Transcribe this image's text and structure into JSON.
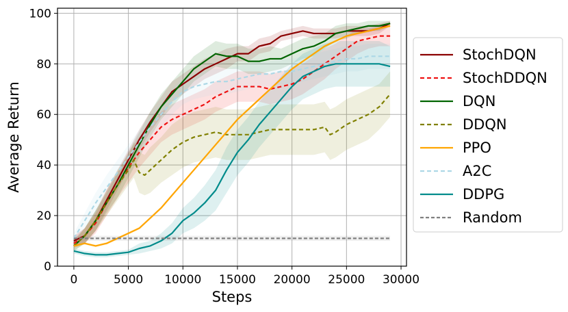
{
  "chart_data": {
    "type": "line",
    "xlabel": "Steps",
    "ylabel": "Average Return",
    "xlim": [
      -1500,
      30500
    ],
    "ylim": [
      0,
      102
    ],
    "xticks": [
      0,
      5000,
      10000,
      15000,
      20000,
      25000,
      30000
    ],
    "xtick_labels": [
      "0",
      "5000",
      "10000",
      "15000",
      "20000",
      "25000",
      "30000"
    ],
    "yticks": [
      0,
      20,
      40,
      60,
      80,
      100
    ],
    "ytick_labels": [
      "0",
      "20",
      "40",
      "60",
      "80",
      "100"
    ],
    "grid": true,
    "legend_position": "right outside",
    "series": [
      {
        "name": "StochDQN",
        "color": "#8b0000",
        "dash": "solid",
        "x": [
          0,
          1000,
          2000,
          3000,
          4000,
          5000,
          6000,
          7000,
          8000,
          9000,
          10000,
          11000,
          12000,
          13000,
          14000,
          15000,
          16000,
          17000,
          18000,
          19000,
          20000,
          21000,
          22000,
          23000,
          24000,
          25000,
          26000,
          27000,
          28000,
          29000
        ],
        "y": [
          10,
          12,
          18,
          26,
          34,
          42,
          50,
          57,
          63,
          69,
          72,
          75,
          78,
          80,
          82,
          84,
          84,
          87,
          88,
          91,
          92,
          93,
          92,
          92,
          92,
          93,
          93,
          93,
          94,
          96
        ],
        "band": [
          2,
          3,
          4,
          4,
          4,
          4,
          4,
          4,
          4,
          4,
          4,
          4,
          4,
          4,
          4,
          3,
          3,
          3,
          3,
          2,
          2,
          2,
          2,
          2,
          2,
          2,
          2,
          2,
          2,
          1
        ]
      },
      {
        "name": "StochDDQN",
        "color": "#ee1111",
        "dash": "6,4",
        "x": [
          0,
          1000,
          2000,
          3000,
          4000,
          5000,
          6000,
          7000,
          8000,
          9000,
          10000,
          11000,
          12000,
          13000,
          14000,
          15000,
          16000,
          17000,
          18000,
          19000,
          20000,
          21000,
          22000,
          23000,
          24000,
          25000,
          26000,
          27000,
          28000,
          29000
        ],
        "y": [
          9,
          12,
          17,
          25,
          32,
          39,
          45,
          50,
          55,
          58,
          60,
          62,
          64,
          67,
          69,
          71,
          71,
          71,
          70,
          71,
          72,
          74,
          77,
          80,
          83,
          86,
          89,
          90,
          91,
          91
        ],
        "band": [
          2,
          3,
          4,
          5,
          5,
          6,
          6,
          6,
          6,
          6,
          6,
          6,
          6,
          6,
          6,
          6,
          6,
          6,
          6,
          6,
          6,
          6,
          6,
          6,
          5,
          5,
          5,
          4,
          4,
          4
        ]
      },
      {
        "name": "DQN",
        "color": "#006400",
        "dash": "solid",
        "x": [
          0,
          1000,
          2000,
          3000,
          4000,
          5000,
          6000,
          7000,
          8000,
          9000,
          10000,
          11000,
          12000,
          13000,
          14000,
          15000,
          16000,
          17000,
          18000,
          19000,
          20000,
          21000,
          22000,
          23000,
          24000,
          25000,
          26000,
          27000,
          28000,
          29000
        ],
        "y": [
          8,
          12,
          18,
          25,
          32,
          40,
          48,
          56,
          63,
          68,
          73,
          78,
          81,
          84,
          83,
          83,
          81,
          81,
          82,
          82,
          84,
          86,
          87,
          89,
          92,
          93,
          94,
          95,
          95,
          96
        ],
        "band": [
          2,
          3,
          4,
          4,
          5,
          5,
          5,
          5,
          5,
          5,
          5,
          5,
          5,
          5,
          5,
          5,
          5,
          5,
          5,
          4,
          4,
          4,
          4,
          3,
          3,
          3,
          2,
          2,
          2,
          1
        ]
      },
      {
        "name": "DDQN",
        "color": "#808000",
        "dash": "6,4",
        "x": [
          0,
          1000,
          2000,
          3000,
          4000,
          5000,
          5500,
          6000,
          6500,
          7000,
          8000,
          9000,
          10000,
          11000,
          12000,
          13000,
          14000,
          15000,
          16000,
          17000,
          18000,
          19000,
          20000,
          21000,
          22000,
          23000,
          23500,
          24000,
          25000,
          26000,
          27000,
          28000,
          29000
        ],
        "y": [
          8,
          12,
          18,
          25,
          32,
          38,
          42,
          37,
          36,
          38,
          42,
          46,
          49,
          51,
          52,
          53,
          52,
          52,
          52,
          53,
          54,
          54,
          54,
          54,
          54,
          55,
          52,
          53,
          56,
          58,
          60,
          63,
          68
        ],
        "band": [
          2,
          3,
          4,
          5,
          6,
          6,
          7,
          8,
          8,
          9,
          9,
          10,
          10,
          10,
          10,
          10,
          10,
          10,
          10,
          10,
          10,
          10,
          10,
          10,
          10,
          10,
          10,
          10,
          10,
          10,
          10,
          9,
          9
        ]
      },
      {
        "name": "PPO",
        "color": "#ffa500",
        "dash": "solid",
        "x": [
          0,
          1000,
          2000,
          3000,
          4000,
          5000,
          6000,
          7000,
          8000,
          9000,
          10000,
          11000,
          12000,
          13000,
          14000,
          15000,
          16000,
          17000,
          18000,
          19000,
          20000,
          21000,
          22000,
          23000,
          24000,
          25000,
          26000,
          27000,
          28000,
          29000
        ],
        "y": [
          8,
          9,
          8,
          9,
          11,
          13,
          15,
          19,
          23,
          28,
          33,
          38,
          43,
          48,
          53,
          58,
          62,
          66,
          70,
          74,
          78,
          81,
          84,
          87,
          89,
          91,
          92,
          93,
          94,
          95
        ],
        "band": [
          0.5,
          0.5,
          0.5,
          0.5,
          0.5,
          0.5,
          0.5,
          0.5,
          0.5,
          0.5,
          0.5,
          0.5,
          0.5,
          0.5,
          0.5,
          0.5,
          0.5,
          0.5,
          0.5,
          0.5,
          0.5,
          0.5,
          0.5,
          0.5,
          0.5,
          0.5,
          0.5,
          0.5,
          0.5,
          0.5
        ]
      },
      {
        "name": "A2C",
        "color": "#add8e6",
        "dash": "6,4",
        "x": [
          0,
          1000,
          2000,
          3000,
          4000,
          5000,
          6000,
          7000,
          8000,
          9000,
          10000,
          11000,
          12000,
          13000,
          14000,
          15000,
          16000,
          17000,
          18000,
          19000,
          20000,
          21000,
          22000,
          23000,
          24000,
          25000,
          26000,
          27000,
          28000,
          29000
        ],
        "y": [
          11,
          18,
          25,
          31,
          37,
          43,
          49,
          55,
          60,
          65,
          69,
          71,
          72,
          73,
          73,
          74,
          75,
          76,
          76,
          77,
          77,
          78,
          79,
          80,
          81,
          82,
          82,
          83,
          83,
          83
        ],
        "band": [
          2,
          3,
          4,
          5,
          5,
          5,
          5,
          5,
          5,
          5,
          5,
          5,
          5,
          5,
          5,
          5,
          5,
          5,
          5,
          5,
          5,
          5,
          5,
          5,
          5,
          5,
          5,
          5,
          5,
          5
        ]
      },
      {
        "name": "DDPG",
        "color": "#008b8b",
        "dash": "solid",
        "x": [
          0,
          1000,
          2000,
          3000,
          4000,
          5000,
          6000,
          7000,
          8000,
          9000,
          10000,
          11000,
          12000,
          13000,
          14000,
          15000,
          16000,
          17000,
          18000,
          19000,
          20000,
          21000,
          22000,
          23000,
          24000,
          25000,
          26000,
          27000,
          28000,
          29000
        ],
        "y": [
          6,
          5,
          4.5,
          4.5,
          5,
          5.5,
          7,
          8,
          10,
          13,
          18,
          21,
          25,
          30,
          38,
          45,
          50,
          56,
          61,
          66,
          71,
          75,
          77,
          79,
          80,
          80,
          80,
          80,
          80,
          79
        ],
        "band": [
          1,
          1,
          1,
          1,
          1,
          1,
          2,
          2,
          3,
          4,
          5,
          6,
          7,
          8,
          9,
          9,
          9,
          9,
          9,
          9,
          9,
          9,
          9,
          9,
          9,
          9,
          9,
          9,
          9,
          8
        ]
      },
      {
        "name": "Random",
        "color": "#808080",
        "dash": "5,3",
        "x": [
          0,
          29000
        ],
        "y": [
          11,
          11
        ],
        "band": [
          1,
          1
        ]
      }
    ]
  }
}
